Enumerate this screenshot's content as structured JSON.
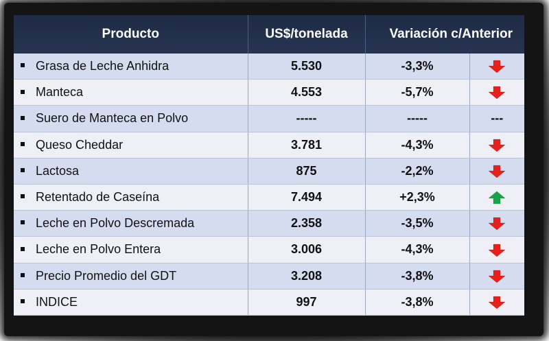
{
  "table": {
    "headers": {
      "product": "Producto",
      "price": "US$/tonelada",
      "variation": "Variación c/Anterior"
    },
    "rows": [
      {
        "product": "Grasa de Leche Anhidra",
        "price": "5.530",
        "variation": "-3,3%",
        "trend": "down"
      },
      {
        "product": "Manteca",
        "price": "4.553",
        "variation": "-5,7%",
        "trend": "down"
      },
      {
        "product": "Suero de Manteca en Polvo",
        "price": "-----",
        "variation": "-----",
        "trend": "none",
        "trend_text": "---"
      },
      {
        "product": "Queso Cheddar",
        "price": "3.781",
        "variation": "-4,3%",
        "trend": "down"
      },
      {
        "product": "Lactosa",
        "price": "875",
        "variation": "-2,2%",
        "trend": "down"
      },
      {
        "product": "Retentado de Caseína",
        "price": "7.494",
        "variation": "+2,3%",
        "trend": "up"
      },
      {
        "product": "Leche en Polvo Descremada",
        "price": "2.358",
        "variation": "-3,5%",
        "trend": "down"
      },
      {
        "product": "Leche en Polvo Entera",
        "price": "3.006",
        "variation": "-4,3%",
        "trend": "down"
      },
      {
        "product": "Precio Promedio del GDT",
        "price": "3.208",
        "variation": "-3,8%",
        "trend": "down"
      },
      {
        "product": "INDICE",
        "price": "997",
        "variation": "-3,8%",
        "trend": "down"
      }
    ]
  },
  "colors": {
    "header_bg": "#1f2b44",
    "row_odd": "#d6dcef",
    "row_even": "#eef0f6",
    "arrow_down": "#e8201c",
    "arrow_up": "#17a34a"
  },
  "icons": {
    "down": "arrow-down-icon",
    "up": "arrow-up-icon"
  }
}
